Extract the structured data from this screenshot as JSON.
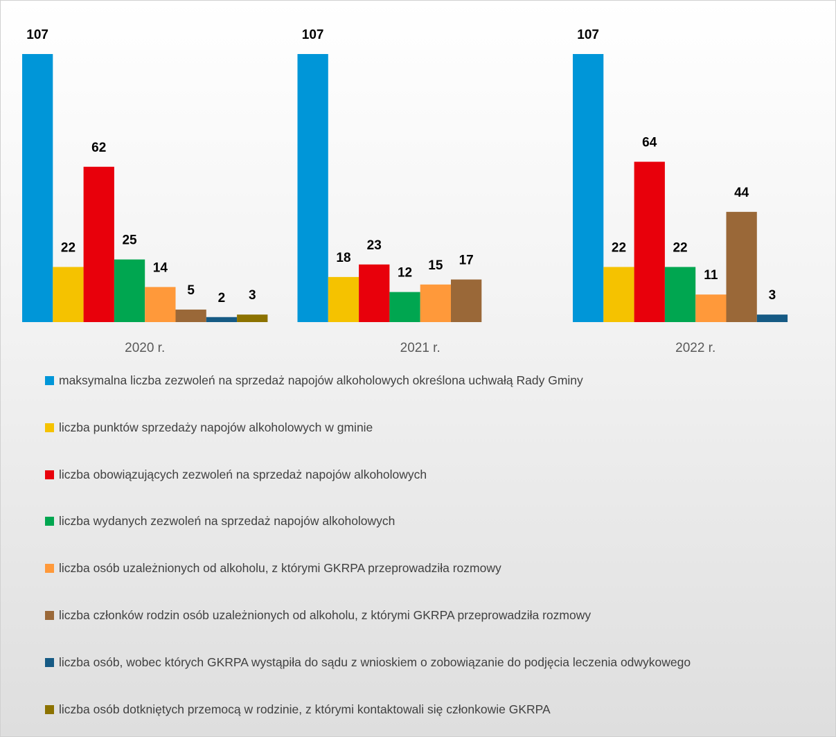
{
  "chart_data": {
    "type": "bar",
    "categories": [
      "2020 r.",
      "2021 r.",
      "2022 r."
    ],
    "series": [
      {
        "name": "maksymalna liczba zezwoleń na sprzedaż napojów alkoholowych określona uchwałą Rady Gminy",
        "color": "#0096d8",
        "values": [
          107,
          107,
          107
        ]
      },
      {
        "name": "liczba punktów sprzedaży napojów alkoholowych w gminie",
        "color": "#f5c200",
        "values": [
          22,
          18,
          22
        ]
      },
      {
        "name": "liczba obowiązujących zezwoleń na sprzedaż napojów alkoholowych",
        "color": "#e8000b",
        "values": [
          62,
          23,
          64
        ]
      },
      {
        "name": "liczba wydanych zezwoleń na sprzedaż napojów alkoholowych",
        "color": "#00a650",
        "values": [
          25,
          12,
          22
        ]
      },
      {
        "name": "liczba osób uzależnionych od alkoholu, z którymi GKRPA przeprowadziła rozmowy",
        "color": "#ff993a",
        "values": [
          14,
          15,
          11
        ]
      },
      {
        "name": "liczba członków rodzin osób uzależnionych od alkoholu, z którymi GKRPA przeprowadziła rozmowy",
        "color": "#9a6838",
        "values": [
          5,
          17,
          44
        ]
      },
      {
        "name": "liczba osób, wobec których GKRPA wystąpiła do sądu z wnioskiem o zobowiązanie do podjęcia leczenia odwykowego",
        "color": "#165a84",
        "values": [
          2,
          null,
          3
        ]
      },
      {
        "name": "liczba osób dotkniętych przemocą w rodzinie, z którymi kontaktowali się członkowie GKRPA",
        "color": "#8c7200",
        "values": [
          3,
          null,
          null
        ]
      }
    ]
  }
}
